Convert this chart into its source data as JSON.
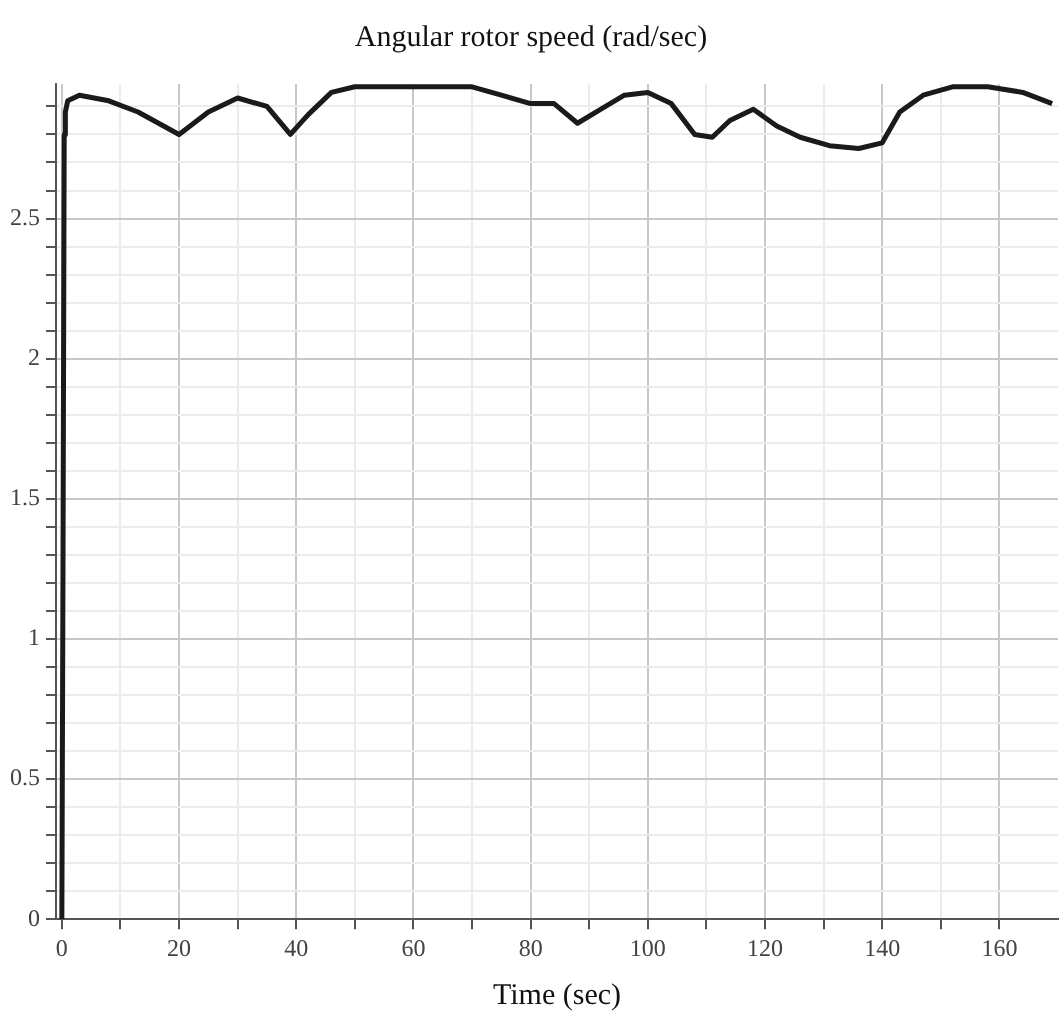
{
  "chart_data": {
    "type": "line",
    "title": "Angular rotor speed (rad/sec)",
    "xlabel": "Time (sec)",
    "x": [
      0,
      0.2,
      0.4,
      0.6,
      1,
      3,
      8,
      13,
      20,
      25,
      30,
      35,
      39,
      42,
      46,
      50,
      60,
      70,
      75,
      80,
      84,
      88,
      92,
      96,
      100,
      104,
      108,
      111,
      114,
      118,
      122,
      126,
      131,
      136,
      140,
      143,
      147,
      152,
      158,
      164,
      169
    ],
    "series": [
      {
        "color": "#1a1a1a",
        "values": [
          0,
          1.3,
          2.8,
          2.88,
          2.92,
          2.94,
          2.92,
          2.88,
          2.8,
          2.88,
          2.93,
          2.9,
          2.8,
          2.87,
          2.95,
          2.97,
          2.97,
          2.97,
          2.94,
          2.91,
          2.91,
          2.84,
          2.89,
          2.94,
          2.95,
          2.91,
          2.8,
          2.79,
          2.85,
          2.89,
          2.83,
          2.79,
          2.76,
          2.75,
          2.77,
          2.88,
          2.94,
          2.97,
          2.97,
          2.95,
          2.91
        ]
      }
    ],
    "xlim": [
      -1,
      170
    ],
    "ylim": [
      0,
      2.98
    ],
    "xticks": [
      0,
      {
        "value": 10,
        "label": null
      },
      20,
      {
        "value": 30,
        "label": null
      },
      40,
      {
        "value": 50,
        "label": null
      },
      60,
      {
        "value": 70,
        "label": null
      },
      80,
      {
        "value": 90,
        "label": null
      },
      100,
      {
        "value": 110,
        "label": null
      },
      120,
      {
        "value": 130,
        "label": null
      },
      140,
      {
        "value": 150,
        "label": null
      },
      160
    ],
    "yticks": [
      0,
      {
        "value": 0.1,
        "label": null
      },
      {
        "value": 0.2,
        "label": null
      },
      {
        "value": 0.3,
        "label": null
      },
      {
        "value": 0.4,
        "label": null
      },
      0.5,
      {
        "value": 0.6,
        "label": null
      },
      {
        "value": 0.7,
        "label": null
      },
      {
        "value": 0.8,
        "label": null
      },
      {
        "value": 0.9,
        "label": null
      },
      1,
      {
        "value": 1.1,
        "label": null
      },
      {
        "value": 1.2,
        "label": null
      },
      {
        "value": 1.3,
        "label": null
      },
      {
        "value": 1.4,
        "label": null
      },
      1.5,
      {
        "value": 1.6,
        "label": null
      },
      {
        "value": 1.7,
        "label": null
      },
      {
        "value": 1.8,
        "label": null
      },
      {
        "value": 1.9,
        "label": null
      },
      2,
      {
        "value": 2.1,
        "label": null
      },
      {
        "value": 2.2,
        "label": null
      },
      {
        "value": 2.3,
        "label": null
      },
      {
        "value": 2.4,
        "label": null
      },
      2.5,
      {
        "value": 2.6,
        "label": null
      },
      {
        "value": 2.7,
        "label": null
      },
      {
        "value": 2.8,
        "label": null
      },
      {
        "value": 2.9,
        "label": null
      }
    ],
    "grid": true,
    "legend": false,
    "marker": "none",
    "line_style": "solid"
  }
}
